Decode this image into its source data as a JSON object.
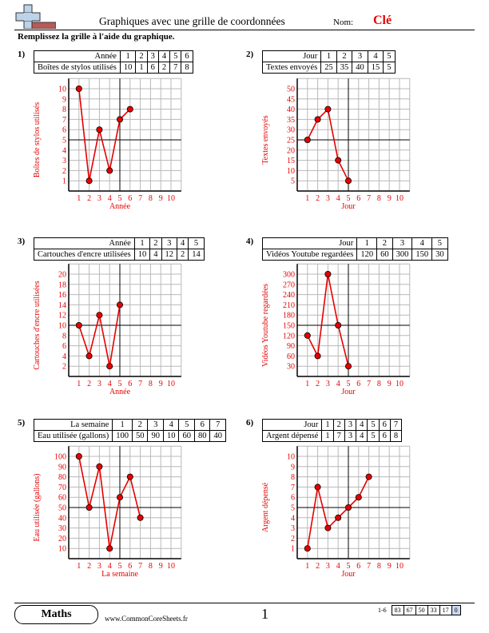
{
  "header": {
    "title": "Graphiques avec une grille de coordonnées",
    "name_label": "Nom:",
    "key_label": "Clé",
    "instructions": "Remplissez la grille à l'aide du graphique."
  },
  "colors": {
    "accent": "#e60000",
    "point_fill": "#e60000"
  },
  "chart_data": [
    {
      "type": "line",
      "number": "1)",
      "xlabel": "Année",
      "ylabel": "Boîtes de stylos utilisés",
      "x": [
        1,
        2,
        3,
        4,
        5,
        6
      ],
      "values": [
        10,
        1,
        6,
        2,
        7,
        8
      ],
      "y_ticks": [
        1,
        2,
        3,
        4,
        5,
        6,
        7,
        8,
        9,
        10
      ],
      "ylim": [
        0,
        10
      ],
      "xlim": [
        0,
        10
      ]
    },
    {
      "type": "line",
      "number": "2)",
      "xlabel": "Jour",
      "ylabel": "Textes envoyés",
      "x": [
        1,
        2,
        3,
        4,
        5
      ],
      "values": [
        25,
        35,
        40,
        15,
        5
      ],
      "y_ticks": [
        5,
        10,
        15,
        20,
        25,
        30,
        35,
        40,
        45,
        50
      ],
      "ylim": [
        0,
        50
      ],
      "xlim": [
        0,
        10
      ]
    },
    {
      "type": "line",
      "number": "3)",
      "xlabel": "Année",
      "ylabel": "Cartouches d'encre utilisées",
      "x": [
        1,
        2,
        3,
        4,
        5
      ],
      "values": [
        10,
        4,
        12,
        2,
        14
      ],
      "y_ticks": [
        2,
        4,
        6,
        8,
        10,
        12,
        14,
        16,
        18,
        20
      ],
      "ylim": [
        0,
        20
      ],
      "xlim": [
        0,
        10
      ]
    },
    {
      "type": "line",
      "number": "4)",
      "xlabel": "Jour",
      "ylabel": "Vidéos Youtube regardées",
      "x": [
        1,
        2,
        3,
        4,
        5
      ],
      "values": [
        120,
        60,
        300,
        150,
        30
      ],
      "y_ticks": [
        30,
        60,
        90,
        120,
        150,
        180,
        210,
        240,
        270,
        300
      ],
      "ylim": [
        0,
        300
      ],
      "xlim": [
        0,
        10
      ]
    },
    {
      "type": "line",
      "number": "5)",
      "xlabel": "La semaine",
      "ylabel": "Eau utilisée (gallons)",
      "x": [
        1,
        2,
        3,
        4,
        5,
        6,
        7
      ],
      "values": [
        100,
        50,
        90,
        10,
        60,
        80,
        40
      ],
      "y_ticks": [
        10,
        20,
        30,
        40,
        50,
        60,
        70,
        80,
        90,
        100
      ],
      "ylim": [
        0,
        100
      ],
      "xlim": [
        0,
        10
      ]
    },
    {
      "type": "line",
      "number": "6)",
      "xlabel": "Jour",
      "ylabel": "Argent dépensé",
      "x": [
        1,
        2,
        3,
        4,
        5,
        6,
        7
      ],
      "values": [
        1,
        7,
        3,
        4,
        5,
        6,
        8
      ],
      "y_ticks": [
        1,
        2,
        3,
        4,
        5,
        6,
        7,
        8,
        9,
        10
      ],
      "ylim": [
        0,
        10
      ],
      "xlim": [
        0,
        10
      ]
    }
  ],
  "footer": {
    "subject": "Maths",
    "website": "www.CommonCoreSheets.fr",
    "page": "1",
    "score_range": "1-6",
    "scores": [
      "83",
      "67",
      "50",
      "33",
      "17",
      "0"
    ]
  }
}
